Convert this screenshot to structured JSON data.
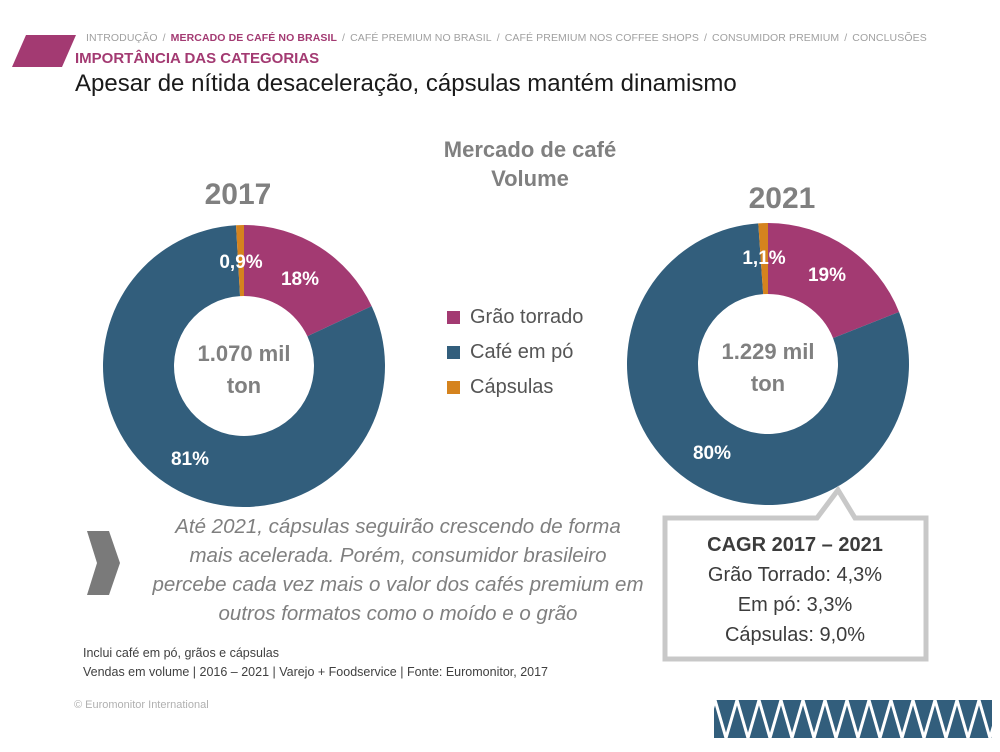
{
  "breadcrumb": {
    "items": [
      {
        "label": "Introdução",
        "active": false
      },
      {
        "label": "Mercado de café no Brasil",
        "active": true
      },
      {
        "label": "Café premium no Brasil",
        "active": false
      },
      {
        "label": "Café premium nos coffee shops",
        "active": false
      },
      {
        "label": "Consumidor premium",
        "active": false
      },
      {
        "label": "Conclusões",
        "active": false
      }
    ],
    "separator": "/"
  },
  "section_label": "Importância das categorias",
  "page_title": "Apesar de nítida desaceleração, cápsulas mantém dinamismo",
  "chart_title": {
    "line1": "Mercado de café",
    "line2": "Volume"
  },
  "colors": {
    "grao_torrado": "#a33a72",
    "cafe_em_po": "#325e7c",
    "capsulas": "#d5831e",
    "accent": "#a33a72",
    "muted_text": "#808080"
  },
  "chart_data": [
    {
      "type": "pie",
      "title": "2017",
      "center_label": {
        "line1": "1.070 mil",
        "line2": "ton"
      },
      "categories": [
        "Grão torrado",
        "Café em pó",
        "Cápsulas"
      ],
      "values": [
        18,
        81,
        0.9
      ],
      "data_labels": [
        "18%",
        "81%",
        "0,9%"
      ]
    },
    {
      "type": "pie",
      "title": "2021",
      "center_label": {
        "line1": "1.229 mil",
        "line2": "ton"
      },
      "categories": [
        "Grão torrado",
        "Café em pó",
        "Cápsulas"
      ],
      "values": [
        19,
        80,
        1.1
      ],
      "data_labels": [
        "19%",
        "80%",
        "1,1%"
      ]
    }
  ],
  "legend": [
    {
      "label": "Grão torrado",
      "color": "#a33a72"
    },
    {
      "label": "Café em pó",
      "color": "#325e7c"
    },
    {
      "label": "Cápsulas",
      "color": "#d5831e"
    }
  ],
  "insight": {
    "line1": "Até 2021, cápsulas seguirão crescendo de forma",
    "line2": "mais acelerada. Porém, consumidor brasileiro",
    "line3": "percebe cada vez mais o valor dos cafés premium em",
    "line4": "outros formatos como o moído e o grão"
  },
  "cagr": {
    "title": "CAGR 2017 – 2021",
    "line1": "Grão Torrado: 4,3%",
    "line2": "Em pó: 3,3%",
    "line3": "Cápsulas: 9,0%"
  },
  "footnote": {
    "line1": "Inclui café em pó, grãos e cápsulas",
    "line2": "Vendas em volume | 2016 – 2021 | Varejo + Foodservice | Fonte: Euromonitor, 2017"
  },
  "copyright": "© Euromonitor International"
}
